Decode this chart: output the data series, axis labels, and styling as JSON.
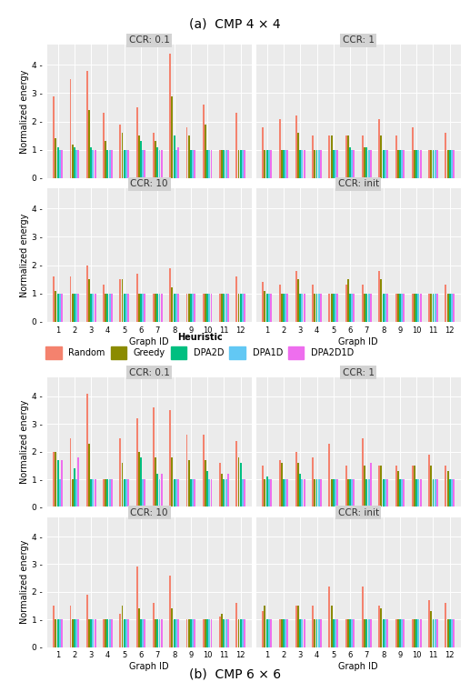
{
  "title_a": "(a)  CMP 4 × 4",
  "title_b": "(b)  CMP 6 × 6",
  "xlabel": "Graph ID",
  "ylabel": "Normalized energy",
  "ccr_labels": [
    "CCR: 0.1",
    "CCR: 1",
    "CCR: 10",
    "CCR: init"
  ],
  "heuristics": [
    "Random",
    "Greedy",
    "DPA2D",
    "DPA1D",
    "DPA2D1D"
  ],
  "colors": [
    "#F4826E",
    "#8B8B00",
    "#00BF80",
    "#62C8F4",
    "#EE6EEE"
  ],
  "n_groups": 12,
  "data_4x4": {
    "CCR: 0.1": [
      [
        2.9,
        1.4,
        1.1,
        1.0,
        1.0
      ],
      [
        3.5,
        1.2,
        1.1,
        1.0,
        1.0
      ],
      [
        3.8,
        2.4,
        1.1,
        1.0,
        1.0
      ],
      [
        2.3,
        1.3,
        1.0,
        1.0,
        1.0
      ],
      [
        1.9,
        1.6,
        1.0,
        1.0,
        1.0
      ],
      [
        2.5,
        1.5,
        1.3,
        1.0,
        1.0
      ],
      [
        1.6,
        1.3,
        1.1,
        1.0,
        1.0
      ],
      [
        4.4,
        2.9,
        1.5,
        1.0,
        1.1
      ],
      [
        1.8,
        1.5,
        1.0,
        1.0,
        1.0
      ],
      [
        2.6,
        1.9,
        1.0,
        1.0,
        1.0
      ],
      [
        1.0,
        1.0,
        1.0,
        1.0,
        1.0
      ],
      [
        2.3,
        1.0,
        1.0,
        1.0,
        1.0
      ]
    ],
    "CCR: 1": [
      [
        1.8,
        1.0,
        1.0,
        1.0,
        1.0
      ],
      [
        2.1,
        1.0,
        1.0,
        1.0,
        1.0
      ],
      [
        2.2,
        1.6,
        1.0,
        1.0,
        1.0
      ],
      [
        1.5,
        1.0,
        1.0,
        1.0,
        1.0
      ],
      [
        1.5,
        1.5,
        1.0,
        1.0,
        1.0
      ],
      [
        1.5,
        1.5,
        1.1,
        1.0,
        1.0
      ],
      [
        1.5,
        1.1,
        1.1,
        1.0,
        1.0
      ],
      [
        2.1,
        1.5,
        1.0,
        1.0,
        1.0
      ],
      [
        1.5,
        1.0,
        1.0,
        1.0,
        1.0
      ],
      [
        1.8,
        1.0,
        1.0,
        1.0,
        1.0
      ],
      [
        1.0,
        1.0,
        1.0,
        1.0,
        1.0
      ],
      [
        1.6,
        1.0,
        1.0,
        1.0,
        1.0
      ]
    ],
    "CCR: 10": [
      [
        1.6,
        1.1,
        1.0,
        1.0,
        1.0
      ],
      [
        1.6,
        1.0,
        1.0,
        1.0,
        1.0
      ],
      [
        2.0,
        1.5,
        1.0,
        1.0,
        1.0
      ],
      [
        1.3,
        1.0,
        1.0,
        1.0,
        1.0
      ],
      [
        1.5,
        1.5,
        1.0,
        1.0,
        1.0
      ],
      [
        1.7,
        1.0,
        1.0,
        1.0,
        1.0
      ],
      [
        1.0,
        1.0,
        1.0,
        1.0,
        1.0
      ],
      [
        1.9,
        1.2,
        1.0,
        1.0,
        1.0
      ],
      [
        1.0,
        1.0,
        1.0,
        1.0,
        1.0
      ],
      [
        1.0,
        1.0,
        1.0,
        1.0,
        1.0
      ],
      [
        1.0,
        1.0,
        1.0,
        1.0,
        1.0
      ],
      [
        1.6,
        1.0,
        1.0,
        1.0,
        1.0
      ]
    ],
    "CCR: init": [
      [
        1.4,
        1.1,
        1.0,
        1.0,
        1.0
      ],
      [
        1.3,
        1.0,
        1.0,
        1.0,
        1.0
      ],
      [
        1.8,
        1.5,
        1.0,
        1.0,
        1.0
      ],
      [
        1.3,
        1.0,
        1.0,
        1.0,
        1.0
      ],
      [
        1.0,
        1.0,
        1.0,
        1.0,
        1.0
      ],
      [
        1.3,
        1.5,
        1.0,
        1.0,
        1.0
      ],
      [
        1.3,
        1.0,
        1.0,
        1.0,
        1.0
      ],
      [
        1.8,
        1.5,
        1.0,
        1.0,
        1.0
      ],
      [
        1.0,
        1.0,
        1.0,
        1.0,
        1.0
      ],
      [
        1.0,
        1.0,
        1.0,
        1.0,
        1.0
      ],
      [
        1.0,
        1.0,
        1.0,
        1.0,
        1.0
      ],
      [
        1.3,
        1.0,
        1.0,
        1.0,
        1.0
      ]
    ]
  },
  "data_6x6": {
    "CCR: 0.1": [
      [
        2.0,
        2.0,
        1.7,
        1.0,
        1.7
      ],
      [
        2.5,
        1.0,
        1.4,
        1.0,
        1.8
      ],
      [
        4.1,
        2.3,
        1.0,
        1.0,
        1.0
      ],
      [
        1.0,
        1.0,
        1.0,
        1.0,
        1.0
      ],
      [
        2.5,
        1.6,
        1.0,
        1.0,
        1.0
      ],
      [
        3.2,
        2.0,
        1.8,
        1.0,
        1.0
      ],
      [
        3.6,
        1.8,
        1.2,
        1.0,
        1.2
      ],
      [
        3.5,
        1.8,
        1.0,
        1.0,
        1.0
      ],
      [
        2.6,
        1.7,
        1.0,
        1.0,
        1.0
      ],
      [
        2.6,
        1.7,
        1.3,
        1.0,
        1.0
      ],
      [
        1.6,
        1.2,
        1.0,
        1.0,
        1.2
      ],
      [
        2.4,
        1.8,
        1.6,
        1.0,
        1.0
      ]
    ],
    "CCR: 1": [
      [
        1.5,
        1.0,
        1.1,
        1.0,
        1.0
      ],
      [
        1.7,
        1.6,
        1.0,
        1.0,
        1.0
      ],
      [
        2.0,
        1.6,
        1.2,
        1.0,
        1.0
      ],
      [
        1.8,
        1.0,
        1.0,
        1.0,
        1.0
      ],
      [
        2.3,
        1.0,
        1.0,
        1.0,
        1.0
      ],
      [
        1.5,
        1.0,
        1.0,
        1.0,
        1.0
      ],
      [
        2.5,
        1.5,
        1.0,
        1.0,
        1.6
      ],
      [
        1.5,
        1.5,
        1.0,
        1.0,
        1.0
      ],
      [
        1.5,
        1.3,
        1.0,
        1.0,
        1.0
      ],
      [
        1.5,
        1.5,
        1.0,
        1.0,
        1.0
      ],
      [
        1.9,
        1.5,
        1.0,
        1.0,
        1.0
      ],
      [
        1.5,
        1.3,
        1.0,
        1.0,
        1.0
      ]
    ],
    "CCR: 10": [
      [
        1.5,
        1.0,
        1.0,
        1.0,
        1.0
      ],
      [
        1.5,
        1.0,
        1.0,
        1.0,
        1.0
      ],
      [
        1.9,
        1.0,
        1.0,
        1.0,
        1.0
      ],
      [
        1.0,
        1.0,
        1.0,
        1.0,
        1.0
      ],
      [
        1.2,
        1.5,
        1.0,
        1.0,
        1.0
      ],
      [
        2.9,
        1.4,
        1.0,
        1.0,
        1.0
      ],
      [
        1.6,
        1.0,
        1.0,
        1.0,
        1.0
      ],
      [
        2.6,
        1.4,
        1.0,
        1.0,
        1.0
      ],
      [
        1.0,
        1.0,
        1.0,
        1.0,
        1.0
      ],
      [
        1.0,
        1.0,
        1.0,
        1.0,
        1.0
      ],
      [
        1.1,
        1.2,
        1.0,
        1.0,
        1.0
      ],
      [
        1.6,
        1.0,
        1.0,
        1.0,
        1.0
      ]
    ],
    "CCR: init": [
      [
        1.3,
        1.5,
        1.0,
        1.0,
        1.0
      ],
      [
        1.0,
        1.0,
        1.0,
        1.0,
        1.0
      ],
      [
        1.5,
        1.5,
        1.0,
        1.0,
        1.0
      ],
      [
        1.5,
        1.0,
        1.0,
        1.0,
        1.0
      ],
      [
        2.2,
        1.5,
        1.0,
        1.0,
        1.0
      ],
      [
        1.0,
        1.0,
        1.0,
        1.0,
        1.0
      ],
      [
        2.2,
        1.0,
        1.0,
        1.0,
        1.0
      ],
      [
        1.5,
        1.4,
        1.0,
        1.0,
        1.0
      ],
      [
        1.0,
        1.0,
        1.0,
        1.0,
        1.0
      ],
      [
        1.0,
        1.0,
        1.0,
        1.0,
        1.0
      ],
      [
        1.7,
        1.3,
        1.0,
        1.0,
        1.0
      ],
      [
        1.6,
        1.0,
        1.0,
        1.0,
        1.0
      ]
    ]
  },
  "bg_color": "#EBEBEB",
  "panel_header_color": "#D3D3D3",
  "grid_color": "#FFFFFF",
  "yticks_top": [
    0,
    1,
    2,
    3,
    4
  ],
  "yticks_bot": [
    0,
    1,
    2,
    3,
    4
  ],
  "ylim": [
    0,
    4.7
  ]
}
